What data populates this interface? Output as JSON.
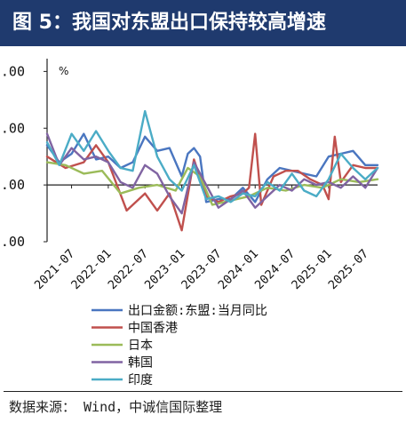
{
  "header": {
    "title": "图 5：我国对东盟出口保持较高增速"
  },
  "source": "数据来源：  Wind，中诚信国际整理",
  "colors": {
    "header_bg": "#1f3a6e"
  },
  "chart_data": {
    "type": "line",
    "title": "",
    "ylabel": "%",
    "yticks": [
      ".00",
      ".00",
      ".00",
      ".00"
    ],
    "y_tick_values": [
      40,
      20,
      0,
      -20
    ],
    "ylim": [
      -20,
      42
    ],
    "xlim": [
      "2021-03",
      "2025-09"
    ],
    "xtick_labels": [
      "2021-07",
      "2022-01",
      "2022-07",
      "2023-01",
      "2023-07",
      "2024-01",
      "2024-07",
      "2025-01",
      "2025-07"
    ],
    "legend_position": "bottom",
    "grid": false,
    "series": [
      {
        "name": "出口金额:东盟:当月同比",
        "color": "#4a76c0",
        "points": [
          [
            "2021-03",
            14
          ],
          [
            "2021-05",
            8
          ],
          [
            "2021-07",
            11
          ],
          [
            "2021-09",
            18
          ],
          [
            "2021-11",
            9
          ],
          [
            "2022-01",
            10
          ],
          [
            "2022-03",
            6
          ],
          [
            "2022-05",
            8
          ],
          [
            "2022-07",
            17
          ],
          [
            "2022-09",
            12
          ],
          [
            "2022-11",
            13
          ],
          [
            "2023-01",
            3
          ],
          [
            "2023-02",
            11
          ],
          [
            "2023-03",
            13
          ],
          [
            "2023-04",
            10
          ],
          [
            "2023-05",
            -6
          ],
          [
            "2023-07",
            -5
          ],
          [
            "2023-09",
            -5
          ],
          [
            "2023-11",
            -1
          ],
          [
            "2024-01",
            -6
          ],
          [
            "2024-03",
            2
          ],
          [
            "2024-05",
            6
          ],
          [
            "2024-07",
            5
          ],
          [
            "2024-09",
            4
          ],
          [
            "2024-11",
            3
          ],
          [
            "2025-01",
            10
          ],
          [
            "2025-03",
            11
          ],
          [
            "2025-05",
            12
          ],
          [
            "2025-07",
            7
          ],
          [
            "2025-09",
            7
          ]
        ]
      },
      {
        "name": "中国香港",
        "color": "#c0504d",
        "points": [
          [
            "2021-03",
            10
          ],
          [
            "2021-06",
            6
          ],
          [
            "2021-09",
            8
          ],
          [
            "2021-11",
            14
          ],
          [
            "2022-01",
            8
          ],
          [
            "2022-04",
            -9
          ],
          [
            "2022-07",
            -3
          ],
          [
            "2022-09",
            -9
          ],
          [
            "2022-11",
            -3
          ],
          [
            "2023-01",
            -16
          ],
          [
            "2023-03",
            9
          ],
          [
            "2023-05",
            -4
          ],
          [
            "2023-07",
            -6
          ],
          [
            "2023-09",
            -4
          ],
          [
            "2023-11",
            -3
          ],
          [
            "2023-12",
            -1
          ],
          [
            "2024-01",
            18
          ],
          [
            "2024-02",
            -7
          ],
          [
            "2024-04",
            3
          ],
          [
            "2024-06",
            5
          ],
          [
            "2024-08",
            5
          ],
          [
            "2024-10",
            2
          ],
          [
            "2024-12",
            0
          ],
          [
            "2025-01",
            -5
          ],
          [
            "2025-02",
            17
          ],
          [
            "2025-03",
            1
          ],
          [
            "2025-05",
            7
          ],
          [
            "2025-07",
            6
          ],
          [
            "2025-09",
            6
          ]
        ]
      },
      {
        "name": "日本",
        "color": "#9bbb59",
        "points": [
          [
            "2021-03",
            8
          ],
          [
            "2021-06",
            7
          ],
          [
            "2021-09",
            4
          ],
          [
            "2021-12",
            5
          ],
          [
            "2022-03",
            -3
          ],
          [
            "2022-06",
            -1
          ],
          [
            "2022-09",
            0
          ],
          [
            "2022-12",
            -2
          ],
          [
            "2023-02",
            6
          ],
          [
            "2023-04",
            3
          ],
          [
            "2023-06",
            -7
          ],
          [
            "2023-08",
            -6
          ],
          [
            "2023-10",
            -5
          ],
          [
            "2023-12",
            -4
          ],
          [
            "2024-03",
            -1
          ],
          [
            "2024-06",
            -2
          ],
          [
            "2024-09",
            0
          ],
          [
            "2024-12",
            -1
          ],
          [
            "2025-03",
            2
          ],
          [
            "2025-06",
            1
          ],
          [
            "2025-09",
            2
          ]
        ]
      },
      {
        "name": "韩国",
        "color": "#8064a2",
        "points": [
          [
            "2021-03",
            18
          ],
          [
            "2021-05",
            7
          ],
          [
            "2021-07",
            13
          ],
          [
            "2021-09",
            9
          ],
          [
            "2021-11",
            10
          ],
          [
            "2022-01",
            8
          ],
          [
            "2022-03",
            1
          ],
          [
            "2022-05",
            -1
          ],
          [
            "2022-07",
            7
          ],
          [
            "2022-09",
            4
          ],
          [
            "2022-11",
            -4
          ],
          [
            "2023-01",
            -10
          ],
          [
            "2023-03",
            8
          ],
          [
            "2023-05",
            0
          ],
          [
            "2023-07",
            -8
          ],
          [
            "2023-09",
            -5
          ],
          [
            "2023-11",
            -2
          ],
          [
            "2024-01",
            -8
          ],
          [
            "2024-03",
            -4
          ],
          [
            "2024-05",
            0
          ],
          [
            "2024-07",
            -2
          ],
          [
            "2024-09",
            2
          ],
          [
            "2024-11",
            0
          ],
          [
            "2025-01",
            1
          ],
          [
            "2025-03",
            -1
          ],
          [
            "2025-05",
            3
          ],
          [
            "2025-07",
            -1
          ],
          [
            "2025-09",
            6
          ]
        ]
      },
      {
        "name": "印度",
        "color": "#4bacc6",
        "points": [
          [
            "2021-03",
            15
          ],
          [
            "2021-05",
            7
          ],
          [
            "2021-07",
            18
          ],
          [
            "2021-09",
            12
          ],
          [
            "2021-11",
            19
          ],
          [
            "2022-01",
            12
          ],
          [
            "2022-03",
            6
          ],
          [
            "2022-05",
            5
          ],
          [
            "2022-07",
            26
          ],
          [
            "2022-09",
            10
          ],
          [
            "2022-11",
            2
          ],
          [
            "2023-01",
            -2
          ],
          [
            "2023-03",
            7
          ],
          [
            "2023-05",
            -5
          ],
          [
            "2023-07",
            -4
          ],
          [
            "2023-09",
            -6
          ],
          [
            "2023-11",
            -3
          ],
          [
            "2024-01",
            -4
          ],
          [
            "2024-03",
            1
          ],
          [
            "2024-05",
            -2
          ],
          [
            "2024-07",
            4
          ],
          [
            "2024-09",
            -2
          ],
          [
            "2024-11",
            -4
          ],
          [
            "2025-01",
            2
          ],
          [
            "2025-03",
            11
          ],
          [
            "2025-05",
            6
          ],
          [
            "2025-07",
            2
          ],
          [
            "2025-09",
            6
          ]
        ]
      }
    ]
  }
}
